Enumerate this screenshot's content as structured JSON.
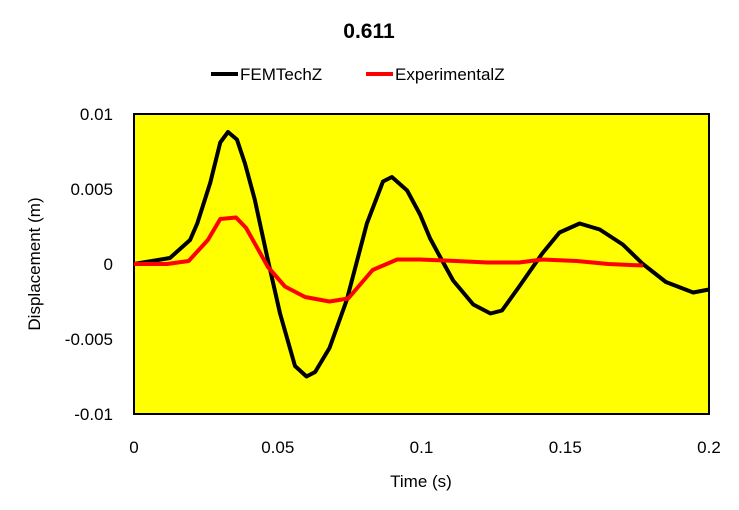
{
  "chart_data": {
    "type": "line",
    "title": "0.611",
    "xlabel": "Time (s)",
    "ylabel": "Displacement (m)",
    "xlim": [
      0,
      0.2
    ],
    "ylim": [
      -0.01,
      0.01
    ],
    "xticks": [
      "0",
      "0.05",
      "0.1",
      "0.15",
      "0.2"
    ],
    "xtick_values": [
      0,
      0.05,
      0.1,
      0.15,
      0.2
    ],
    "yticks": [
      "0.01",
      "0.005",
      "0",
      "-0.005",
      "-0.01"
    ],
    "ytick_values": [
      0.01,
      0.005,
      0,
      -0.005,
      -0.01
    ],
    "grid": false,
    "background": "#FFFF00",
    "legend_position": "top",
    "series": [
      {
        "name": "FEMTechZ",
        "color": "#000000",
        "x": [
          0,
          0.0125,
          0.0195,
          0.022,
          0.0265,
          0.03,
          0.0327,
          0.0358,
          0.0386,
          0.042,
          0.0463,
          0.0508,
          0.056,
          0.06,
          0.063,
          0.068,
          0.074,
          0.081,
          0.0866,
          0.0897,
          0.095,
          0.0995,
          0.103,
          0.1064,
          0.111,
          0.118,
          0.124,
          0.128,
          0.134,
          0.142,
          0.148,
          0.155,
          0.162,
          0.17,
          0.177,
          0.185,
          0.1945,
          0.2
        ],
        "y": [
          0,
          0.0004,
          0.0016,
          0.0027,
          0.0054,
          0.0081,
          0.0088,
          0.0083,
          0.0067,
          0.0043,
          0.0005,
          -0.0033,
          -0.0068,
          -0.0075,
          -0.0072,
          -0.0056,
          -0.0024,
          0.0027,
          0.0055,
          0.0058,
          0.0049,
          0.0033,
          0.0017,
          0.0005,
          -0.0011,
          -0.0027,
          -0.0033,
          -0.0031,
          -0.0015,
          0.0007,
          0.0021,
          0.0027,
          0.0023,
          0.0013,
          0.0,
          -0.0012,
          -0.0019,
          -0.0017
        ]
      },
      {
        "name": "ExperimentalZ",
        "color": "#FF0000",
        "x": [
          0,
          0.0115,
          0.019,
          0.0257,
          0.03,
          0.0355,
          0.039,
          0.0466,
          0.0525,
          0.0595,
          0.068,
          0.0745,
          0.083,
          0.0915,
          0.0995,
          0.112,
          0.123,
          0.134,
          0.142,
          0.154,
          0.165,
          0.177
        ],
        "y": [
          0,
          0.0,
          0.0002,
          0.0016,
          0.003,
          0.0031,
          0.0024,
          -0.0002,
          -0.0015,
          -0.0022,
          -0.0025,
          -0.0023,
          -0.0004,
          0.0003,
          0.0003,
          0.0002,
          0.0001,
          0.0001,
          0.0003,
          0.0002,
          0.0,
          -0.0001
        ]
      }
    ]
  }
}
